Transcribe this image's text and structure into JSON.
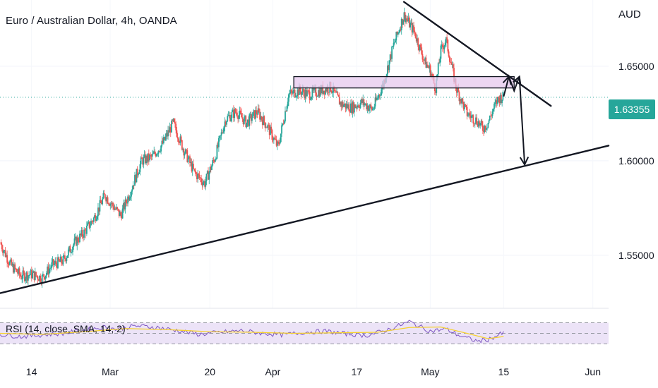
{
  "header": {
    "title": "Euro / Australian Dollar, 4h, OANDA",
    "currency": "AUD"
  },
  "price_tag": {
    "label": "1.63355",
    "color": "#26a69a"
  },
  "rsi": {
    "label": "RSI (14, close, SMA, 14, 2)"
  },
  "colors": {
    "up": "#26a69a",
    "down": "#ef5350",
    "rsi_line": "#7e57c2",
    "rsi_ma": "#f6d12e",
    "rsi_band": "#ece3f7",
    "zone_fill": "#e6c8ee",
    "drawing": "#131722"
  },
  "chart_data": {
    "type": "candlestick",
    "symbol": "Euro / Australian Dollar",
    "timeframe": "4h",
    "source": "OANDA",
    "y_axis": {
      "unit": "AUD",
      "ticks": [
        1.55,
        1.6,
        1.65
      ],
      "tick_labels": [
        "1.55000",
        "1.60000",
        "1.65000"
      ],
      "range": [
        1.522,
        1.685
      ]
    },
    "x_axis": {
      "tick_labels": [
        "14",
        "Mar",
        "20",
        "Apr",
        "17",
        "May",
        "15",
        "Jun"
      ],
      "tick_dates": [
        "2023-02-14",
        "2023-03-01",
        "2023-03-20",
        "2023-04-01",
        "2023-04-17",
        "2023-05-01",
        "2023-05-15",
        "2023-06-01"
      ],
      "range": [
        "2023-02-08",
        "2023-06-04"
      ]
    },
    "last_price": 1.63355,
    "price_path": [
      [
        "2023-02-08",
        1.557
      ],
      [
        "2023-02-10",
        1.545
      ],
      [
        "2023-02-12",
        1.539
      ],
      [
        "2023-02-14",
        1.54
      ],
      [
        "2023-02-16",
        1.538
      ],
      [
        "2023-02-18",
        1.545
      ],
      [
        "2023-02-20",
        1.547
      ],
      [
        "2023-02-22",
        1.556
      ],
      [
        "2023-02-24",
        1.562
      ],
      [
        "2023-02-26",
        1.57
      ],
      [
        "2023-02-28",
        1.582
      ],
      [
        "2023-03-01",
        1.578
      ],
      [
        "2023-03-03",
        1.571
      ],
      [
        "2023-03-05",
        1.585
      ],
      [
        "2023-03-07",
        1.6
      ],
      [
        "2023-03-09",
        1.602
      ],
      [
        "2023-03-11",
        1.609
      ],
      [
        "2023-03-13",
        1.62
      ],
      [
        "2023-03-15",
        1.606
      ],
      [
        "2023-03-17",
        1.594
      ],
      [
        "2023-03-19",
        1.588
      ],
      [
        "2023-03-21",
        1.602
      ],
      [
        "2023-03-23",
        1.622
      ],
      [
        "2023-03-25",
        1.626
      ],
      [
        "2023-03-27",
        1.62
      ],
      [
        "2023-03-29",
        1.626
      ],
      [
        "2023-03-31",
        1.618
      ],
      [
        "2023-04-02",
        1.607
      ],
      [
        "2023-04-04",
        1.635
      ],
      [
        "2023-04-06",
        1.637
      ],
      [
        "2023-04-08",
        1.635
      ],
      [
        "2023-04-10",
        1.637
      ],
      [
        "2023-04-12",
        1.639
      ],
      [
        "2023-04-14",
        1.63
      ],
      [
        "2023-04-16",
        1.628
      ],
      [
        "2023-04-18",
        1.631
      ],
      [
        "2023-04-20",
        1.627
      ],
      [
        "2023-04-22",
        1.64
      ],
      [
        "2023-04-24",
        1.661
      ],
      [
        "2023-04-26",
        1.677
      ],
      [
        "2023-04-28",
        1.668
      ],
      [
        "2023-04-30",
        1.652
      ],
      [
        "2023-05-01",
        1.648
      ],
      [
        "2023-05-02",
        1.638
      ],
      [
        "2023-05-03",
        1.658
      ],
      [
        "2023-05-04",
        1.664
      ],
      [
        "2023-05-06",
        1.638
      ],
      [
        "2023-05-08",
        1.625
      ],
      [
        "2023-05-10",
        1.621
      ],
      [
        "2023-05-11",
        1.617
      ],
      [
        "2023-05-12",
        1.62
      ],
      [
        "2023-05-13",
        1.627
      ],
      [
        "2023-05-14",
        1.633
      ],
      [
        "2023-05-15",
        1.634
      ]
    ],
    "drawings": {
      "resistance_zone": {
        "from": "2023-04-05",
        "to": "2023-05-17",
        "low": 1.6385,
        "high": 1.6445
      },
      "descending_trendline": [
        [
          "2023-04-26",
          1.684
        ],
        [
          "2023-05-24",
          1.629
        ]
      ],
      "ascending_trendline": [
        [
          "2023-02-08",
          1.53
        ],
        [
          "2023-06-04",
          1.608
        ]
      ],
      "projection_path": [
        [
          "2023-05-15",
          1.634
        ],
        [
          "2023-05-16",
          1.6445
        ],
        [
          "2023-05-17",
          1.637
        ],
        [
          "2023-05-18",
          1.6445
        ],
        [
          "2023-05-19",
          1.598
        ]
      ]
    },
    "rsi": {
      "period": 14,
      "ma_type": "SMA",
      "ma_length": 14,
      "bands": [
        30,
        50,
        70
      ],
      "path": [
        [
          "2023-02-08",
          48
        ],
        [
          "2023-02-12",
          44
        ],
        [
          "2023-02-16",
          47
        ],
        [
          "2023-02-20",
          50
        ],
        [
          "2023-02-24",
          56
        ],
        [
          "2023-02-28",
          62
        ],
        [
          "2023-03-02",
          58
        ],
        [
          "2023-03-06",
          64
        ],
        [
          "2023-03-10",
          61
        ],
        [
          "2023-03-14",
          55
        ],
        [
          "2023-03-18",
          48
        ],
        [
          "2023-03-22",
          52
        ],
        [
          "2023-03-26",
          55
        ],
        [
          "2023-03-30",
          50
        ],
        [
          "2023-04-03",
          47
        ],
        [
          "2023-04-07",
          52
        ],
        [
          "2023-04-11",
          54
        ],
        [
          "2023-04-15",
          49
        ],
        [
          "2023-04-19",
          46
        ],
        [
          "2023-04-23",
          57
        ],
        [
          "2023-04-27",
          72
        ],
        [
          "2023-05-01",
          54
        ],
        [
          "2023-05-04",
          58
        ],
        [
          "2023-05-07",
          44
        ],
        [
          "2023-05-10",
          35
        ],
        [
          "2023-05-12",
          38
        ],
        [
          "2023-05-15",
          51
        ]
      ],
      "ma_path": [
        [
          "2023-02-08",
          50
        ],
        [
          "2023-02-16",
          48
        ],
        [
          "2023-02-24",
          53
        ],
        [
          "2023-03-04",
          59
        ],
        [
          "2023-03-12",
          57
        ],
        [
          "2023-03-20",
          53
        ],
        [
          "2023-03-28",
          52
        ],
        [
          "2023-04-05",
          50
        ],
        [
          "2023-04-13",
          51
        ],
        [
          "2023-04-21",
          52
        ],
        [
          "2023-04-27",
          61
        ],
        [
          "2023-05-03",
          62
        ],
        [
          "2023-05-08",
          50
        ],
        [
          "2023-05-12",
          40
        ],
        [
          "2023-05-15",
          44
        ]
      ]
    }
  }
}
